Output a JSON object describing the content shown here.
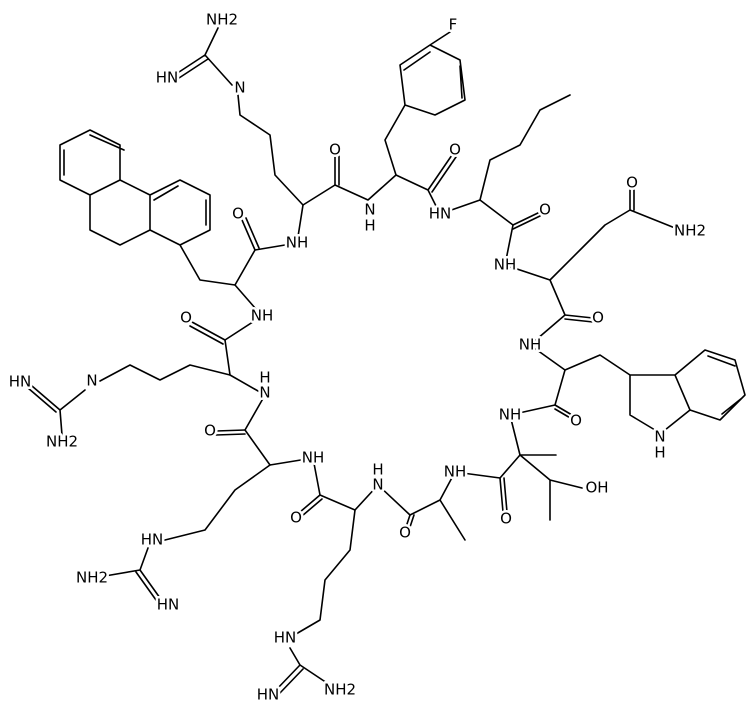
{
  "atoms": [
    "F",
    "NH2",
    "HN",
    "N",
    "O",
    "O",
    "NH",
    "N",
    "H",
    "HN",
    "O",
    "O",
    "NH2",
    "NH",
    "O",
    "O",
    "NH",
    "O",
    "NH",
    "HN",
    "N",
    "NH2",
    "N",
    "H",
    "O",
    "NH",
    "N",
    "H",
    "O",
    "NH",
    "NH",
    "N",
    "H",
    "OH",
    "O",
    "O",
    "O",
    "HN",
    "NH2",
    "HN",
    "HN",
    "NH2",
    "HN"
  ]
}
